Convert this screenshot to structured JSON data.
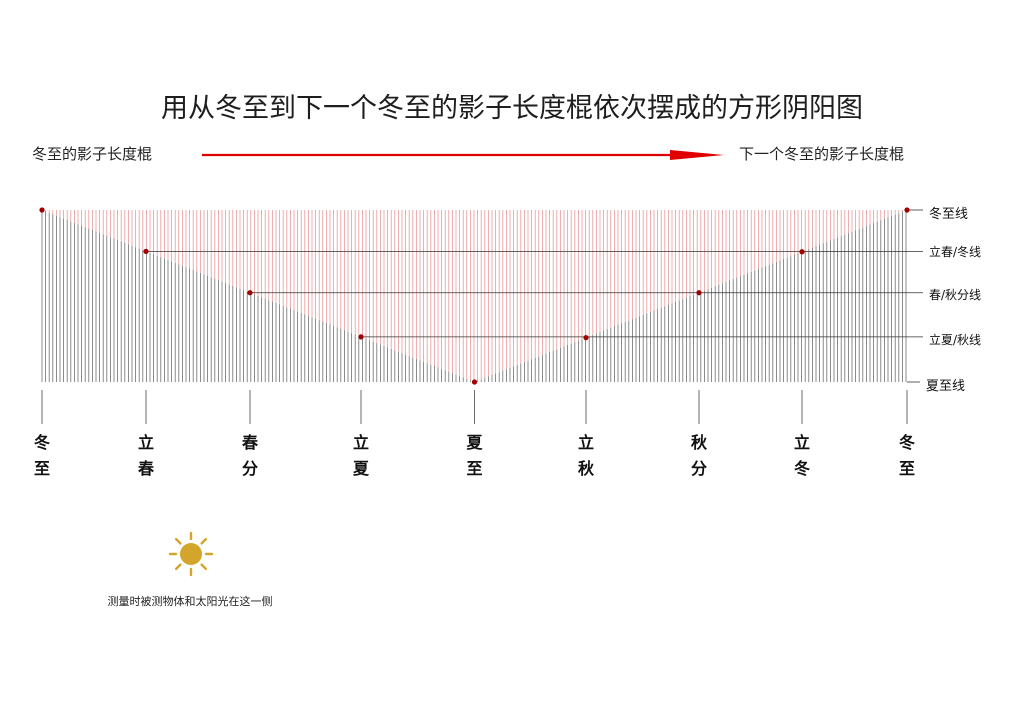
{
  "title": "用从冬至到下一个冬至的影子长度棍依次摆成的方形阴阳图",
  "arrow": {
    "start_label": "冬至的影子长度棍",
    "end_label": "下一个冬至的影子长度棍",
    "color": "#e00000"
  },
  "colors": {
    "shadow_stick": "#6e6e6e",
    "sun_side": "#e89a9a",
    "marker": "#a00000",
    "sun": "#d4a52b"
  },
  "line_labels": {
    "winter": "冬至线",
    "spring_winter": "立春/冬线",
    "equinox": "春/秋分线",
    "summer_autumn": "立夏/秋线",
    "summer": "夏至线"
  },
  "solar_terms": [
    {
      "top": "冬",
      "bottom": "至"
    },
    {
      "top": "立",
      "bottom": "春"
    },
    {
      "top": "春",
      "bottom": "分"
    },
    {
      "top": "立",
      "bottom": "夏"
    },
    {
      "top": "夏",
      "bottom": "至"
    },
    {
      "top": "立",
      "bottom": "秋"
    },
    {
      "top": "秋",
      "bottom": "分"
    },
    {
      "top": "立",
      "bottom": "冬"
    },
    {
      "top": "冬",
      "bottom": "至"
    }
  ],
  "legend": {
    "icon": "sun-icon",
    "note": "测量时被测物体和太阳光在这一侧"
  }
}
